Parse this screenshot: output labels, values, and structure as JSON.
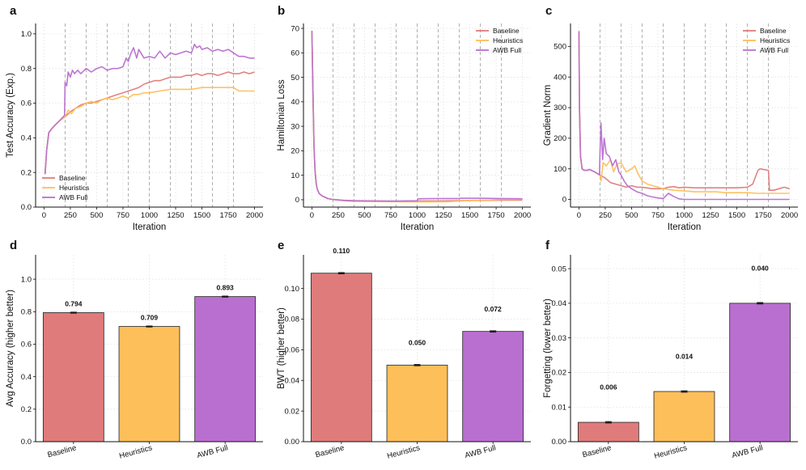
{
  "colors": {
    "baseline": "#e07b7b",
    "heuristics": "#fdbf5a",
    "awb": "#b96fd0"
  },
  "legend": [
    "Baseline",
    "Heuristics",
    "AWB Full"
  ],
  "chart_data": [
    {
      "id": "a",
      "letter": "a",
      "type": "line",
      "xlabel": "Iteration",
      "ylabel": "Test Accuracy (Exp.)",
      "xlim": [
        -80,
        2080
      ],
      "ylim": [
        0,
        1.06
      ],
      "xticks": [
        0,
        250,
        500,
        750,
        1000,
        1250,
        1500,
        1750,
        2000
      ],
      "yticks": [
        0.0,
        0.2,
        0.4,
        0.6,
        0.8,
        1.0
      ],
      "ydec": 1,
      "vlines": [
        200,
        400,
        600,
        800,
        1000,
        1200,
        1400,
        1600,
        1800
      ],
      "legend_loc": "lower-left",
      "series": [
        {
          "name": "Baseline",
          "x": [
            10,
            25,
            45,
            70,
            100,
            150,
            200,
            250,
            300,
            350,
            400,
            450,
            500,
            550,
            600,
            650,
            700,
            750,
            800,
            850,
            900,
            950,
            1000,
            1050,
            1100,
            1150,
            1200,
            1250,
            1300,
            1350,
            1400,
            1450,
            1500,
            1550,
            1600,
            1650,
            1700,
            1750,
            1800,
            1850,
            1900,
            1950,
            2000
          ],
          "y": [
            0.19,
            0.33,
            0.43,
            0.45,
            0.47,
            0.5,
            0.52,
            0.55,
            0.57,
            0.59,
            0.6,
            0.6,
            0.61,
            0.62,
            0.63,
            0.64,
            0.65,
            0.66,
            0.67,
            0.68,
            0.69,
            0.71,
            0.72,
            0.73,
            0.73,
            0.74,
            0.75,
            0.75,
            0.75,
            0.76,
            0.76,
            0.77,
            0.76,
            0.77,
            0.77,
            0.76,
            0.77,
            0.78,
            0.77,
            0.77,
            0.78,
            0.77,
            0.78
          ]
        },
        {
          "name": "Heuristics",
          "x": [
            10,
            25,
            45,
            70,
            100,
            150,
            200,
            230,
            260,
            300,
            350,
            400,
            450,
            500,
            550,
            600,
            650,
            700,
            750,
            800,
            850,
            900,
            950,
            1000,
            1100,
            1200,
            1300,
            1400,
            1500,
            1600,
            1700,
            1800,
            1850,
            1900,
            2000
          ],
          "y": [
            0.19,
            0.33,
            0.43,
            0.45,
            0.47,
            0.5,
            0.52,
            0.56,
            0.54,
            0.57,
            0.58,
            0.6,
            0.61,
            0.6,
            0.62,
            0.63,
            0.62,
            0.63,
            0.64,
            0.63,
            0.65,
            0.65,
            0.66,
            0.66,
            0.67,
            0.68,
            0.68,
            0.68,
            0.69,
            0.69,
            0.69,
            0.69,
            0.67,
            0.67,
            0.67
          ]
        },
        {
          "name": "AWB Full",
          "x": [
            10,
            25,
            45,
            70,
            100,
            150,
            195,
            200,
            215,
            230,
            250,
            270,
            290,
            320,
            350,
            400,
            450,
            500,
            550,
            600,
            650,
            700,
            750,
            780,
            800,
            820,
            850,
            880,
            900,
            950,
            1000,
            1050,
            1100,
            1150,
            1200,
            1250,
            1300,
            1350,
            1400,
            1430,
            1450,
            1480,
            1500,
            1550,
            1600,
            1650,
            1700,
            1750,
            1800,
            1850,
            1900,
            1950,
            2000
          ],
          "y": [
            0.19,
            0.33,
            0.43,
            0.45,
            0.47,
            0.5,
            0.53,
            0.72,
            0.7,
            0.78,
            0.75,
            0.79,
            0.77,
            0.79,
            0.77,
            0.8,
            0.78,
            0.8,
            0.81,
            0.79,
            0.8,
            0.8,
            0.81,
            0.86,
            0.84,
            0.88,
            0.92,
            0.86,
            0.91,
            0.86,
            0.87,
            0.86,
            0.9,
            0.86,
            0.89,
            0.88,
            0.89,
            0.9,
            0.89,
            0.94,
            0.92,
            0.93,
            0.91,
            0.92,
            0.9,
            0.91,
            0.9,
            0.91,
            0.89,
            0.87,
            0.87,
            0.86,
            0.86
          ]
        }
      ]
    },
    {
      "id": "b",
      "letter": "b",
      "type": "line",
      "xlabel": "Iteration",
      "ylabel": "Hamiltonian Loss",
      "xlim": [
        -80,
        2080
      ],
      "ylim": [
        -3,
        72
      ],
      "xticks": [
        0,
        250,
        500,
        750,
        1000,
        1250,
        1500,
        1750,
        2000
      ],
      "yticks": [
        0,
        10,
        20,
        30,
        40,
        50,
        60,
        70
      ],
      "ydec": 0,
      "vlines": [
        200,
        400,
        600,
        800,
        1000,
        1200,
        1400,
        1600,
        1800
      ],
      "legend_loc": "upper-right",
      "series": [
        {
          "name": "Baseline",
          "x": [
            0,
            10,
            20,
            30,
            40,
            50,
            70,
            100,
            150,
            200,
            300,
            400,
            600,
            800,
            1000,
            1200,
            1400,
            1600,
            1800,
            2000
          ],
          "y": [
            69,
            45,
            22,
            12,
            7,
            4.5,
            2.5,
            1.5,
            0.5,
            0.1,
            -0.2,
            -0.4,
            -0.5,
            -0.6,
            -0.5,
            -0.5,
            -0.4,
            -0.3,
            -0.2,
            -0.2
          ]
        },
        {
          "name": "Heuristics",
          "x": [
            0,
            10,
            20,
            30,
            40,
            50,
            70,
            100,
            150,
            200,
            300,
            400,
            600,
            800,
            1000,
            1100,
            1300,
            1500,
            1700,
            1800,
            2000
          ],
          "y": [
            69,
            45,
            22,
            12,
            7,
            4.5,
            2.5,
            1.5,
            0.5,
            0.1,
            -0.4,
            -0.6,
            -0.7,
            -0.8,
            -0.9,
            -0.9,
            -0.8,
            -0.3,
            -0.1,
            0.1,
            0.1
          ]
        },
        {
          "name": "AWB Full",
          "x": [
            0,
            10,
            20,
            30,
            40,
            50,
            70,
            100,
            150,
            200,
            300,
            400,
            600,
            800,
            1000,
            1010,
            1200,
            1400,
            1410,
            1600,
            1800,
            2000
          ],
          "y": [
            69,
            45,
            22,
            12,
            7,
            4.5,
            2.5,
            1.5,
            0.5,
            0.1,
            -0.3,
            -0.5,
            -0.6,
            -0.6,
            -0.5,
            0.4,
            0.5,
            0.5,
            0.6,
            0.6,
            0.5,
            0.4
          ]
        }
      ]
    },
    {
      "id": "c",
      "letter": "c",
      "type": "line",
      "xlabel": "Iteration",
      "ylabel": "Gradient Norm",
      "xlim": [
        -80,
        2080
      ],
      "ylim": [
        -25,
        575
      ],
      "xticks": [
        0,
        250,
        500,
        750,
        1000,
        1250,
        1500,
        1750,
        2000
      ],
      "yticks": [
        0,
        100,
        200,
        300,
        400,
        500
      ],
      "ydec": 0,
      "vlines": [
        200,
        400,
        600,
        800,
        1000,
        1200,
        1400,
        1600,
        1800
      ],
      "legend_loc": "upper-right",
      "series": [
        {
          "name": "Baseline",
          "x": [
            0,
            5,
            15,
            30,
            50,
            80,
            100,
            150,
            200,
            250,
            300,
            350,
            400,
            450,
            500,
            550,
            600,
            700,
            800,
            850,
            900,
            950,
            1000,
            1100,
            1200,
            1300,
            1400,
            1500,
            1600,
            1650,
            1700,
            1720,
            1800,
            1810,
            1850,
            1900,
            1950,
            2000
          ],
          "y": [
            550,
            300,
            140,
            100,
            95,
            95,
            98,
            90,
            80,
            70,
            55,
            50,
            45,
            40,
            45,
            40,
            40,
            35,
            35,
            40,
            42,
            38,
            40,
            38,
            38,
            38,
            38,
            38,
            40,
            50,
            95,
            100,
            95,
            30,
            30,
            35,
            40,
            35
          ]
        },
        {
          "name": "Heuristics",
          "x": [
            0,
            5,
            15,
            30,
            50,
            80,
            100,
            150,
            200,
            210,
            230,
            260,
            300,
            330,
            360,
            400,
            450,
            500,
            530,
            560,
            600,
            650,
            700,
            800,
            900,
            1000,
            1100,
            1200,
            1300,
            1400,
            1500,
            1600,
            1700,
            1800,
            1900,
            2000
          ],
          "y": [
            550,
            300,
            140,
            100,
            95,
            95,
            98,
            90,
            80,
            60,
            120,
            110,
            130,
            90,
            115,
            120,
            90,
            100,
            110,
            85,
            60,
            50,
            45,
            35,
            30,
            28,
            25,
            25,
            25,
            22,
            22,
            22,
            20,
            20,
            20,
            20
          ]
        },
        {
          "name": "AWB Full",
          "x": [
            0,
            5,
            15,
            30,
            50,
            80,
            100,
            150,
            195,
            200,
            210,
            225,
            240,
            260,
            290,
            320,
            350,
            380,
            400,
            430,
            460,
            500,
            550,
            600,
            650,
            700,
            750,
            800,
            850,
            900,
            950,
            1000,
            1050,
            1100,
            1200,
            1300,
            1400,
            1500,
            1600,
            1700,
            1800,
            1900,
            2000
          ],
          "y": [
            550,
            300,
            140,
            100,
            95,
            95,
            98,
            90,
            80,
            150,
            250,
            130,
            200,
            150,
            140,
            110,
            130,
            90,
            80,
            60,
            45,
            35,
            25,
            20,
            12,
            8,
            5,
            3,
            20,
            10,
            2,
            0,
            0,
            0,
            0,
            0,
            0,
            0,
            0,
            0,
            0,
            0,
            0
          ]
        }
      ]
    },
    {
      "id": "d",
      "letter": "d",
      "type": "bar",
      "categories": [
        "Baseline",
        "Heuristics",
        "AWB Full"
      ],
      "values": [
        0.794,
        0.709,
        0.893
      ],
      "errors": [
        0.003,
        0.003,
        0.003
      ],
      "value_labels": [
        "0.794",
        "0.709",
        "0.893"
      ],
      "ylabel": "Avg Accuracy (higher better)",
      "ylim": [
        0,
        1.15
      ],
      "yticks": [
        0.0,
        0.2,
        0.4,
        0.6,
        0.8,
        1.0
      ],
      "ydec": 1,
      "label_offset": 0.04
    },
    {
      "id": "e",
      "letter": "e",
      "type": "bar",
      "categories": [
        "Baseline",
        "Heuristics",
        "AWB Full"
      ],
      "values": [
        0.11,
        0.05,
        0.072
      ],
      "errors": [
        0.0004,
        0.0004,
        0.0004
      ],
      "value_labels": [
        "0.110",
        "0.050",
        "0.072"
      ],
      "ylabel": "BWT (higher better)",
      "ylim": [
        0,
        0.122
      ],
      "yticks": [
        0.0,
        0.02,
        0.04,
        0.06,
        0.08,
        0.1
      ],
      "ydec": 2,
      "label_offset": 0.013
    },
    {
      "id": "f",
      "letter": "f",
      "type": "bar",
      "categories": [
        "Baseline",
        "Heuristics",
        "AWB Full"
      ],
      "values": [
        0.0056,
        0.0145,
        0.04
      ],
      "errors": [
        0.0002,
        0.0002,
        0.0002
      ],
      "value_labels": [
        "0.006",
        "0.014",
        "0.040"
      ],
      "ylabel": "Forgetting (lower better)",
      "ylim": [
        0,
        0.054
      ],
      "yticks": [
        0.0,
        0.01,
        0.02,
        0.03,
        0.04,
        0.05
      ],
      "ydec": 2,
      "label_offset": 0.0095
    }
  ]
}
